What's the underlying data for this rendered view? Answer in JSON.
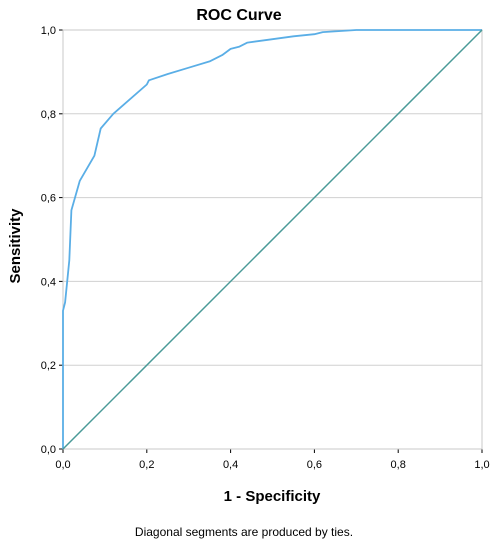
{
  "chart_data": {
    "type": "line",
    "title": "ROC Curve",
    "xlabel": "1 - Specificity",
    "ylabel": "Sensitivity",
    "footnote": "Diagonal segments are produced by ties.",
    "xlim": [
      0,
      1
    ],
    "ylim": [
      0,
      1
    ],
    "x_ticks": [
      "0,0",
      "0,2",
      "0,4",
      "0,6",
      "0,8",
      "1,0"
    ],
    "y_ticks": [
      "0,0",
      "0,2",
      "0,4",
      "0,6",
      "0,8",
      "1,0"
    ],
    "grid": "horizontal",
    "colors": {
      "roc": "#5aaee6",
      "reference": "#4a9a98",
      "grid": "#d0d0d0",
      "frame": "#c8c8c8"
    },
    "series": [
      {
        "role": "roc",
        "x": [
          0.0,
          0.0,
          0.005,
          0.01,
          0.015,
          0.02,
          0.04,
          0.075,
          0.09,
          0.12,
          0.2,
          0.205,
          0.25,
          0.3,
          0.35,
          0.38,
          0.4,
          0.42,
          0.44,
          0.5,
          0.55,
          0.6,
          0.62,
          0.7,
          0.8,
          1.0
        ],
        "y": [
          0.0,
          0.33,
          0.35,
          0.4,
          0.45,
          0.57,
          0.64,
          0.7,
          0.765,
          0.8,
          0.87,
          0.88,
          0.895,
          0.91,
          0.925,
          0.94,
          0.955,
          0.96,
          0.97,
          0.978,
          0.985,
          0.99,
          0.995,
          1.0,
          1.0,
          1.0
        ]
      },
      {
        "role": "reference",
        "x": [
          0,
          1
        ],
        "y": [
          0,
          1
        ]
      }
    ]
  }
}
